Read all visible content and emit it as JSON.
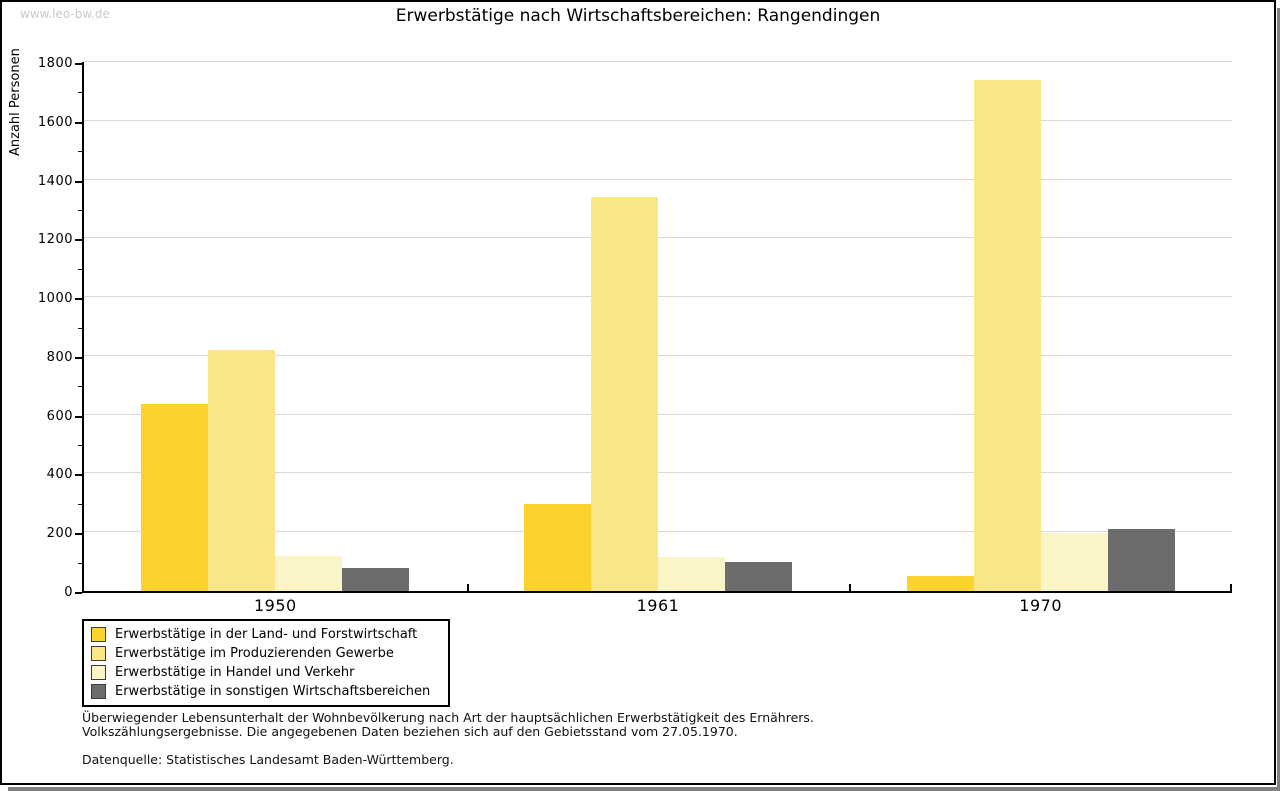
{
  "watermark": "www.leo-bw.de",
  "title": "Erwerbstätige nach Wirtschaftsbereichen: Rangendingen",
  "chart_data": {
    "type": "bar",
    "title": "Erwerbstätige nach Wirtschaftsbereichen: Rangendingen",
    "categories": [
      "1950",
      "1961",
      "1970"
    ],
    "series": [
      {
        "name": "Erwerbstätige in der Land- und Forstwirtschaft",
        "color": "#FBD32E",
        "values": [
          635,
          295,
          52
        ]
      },
      {
        "name": "Erwerbstätige im Produzierenden Gewerbe",
        "color": "#FAE687",
        "values": [
          820,
          1340,
          1740
        ]
      },
      {
        "name": "Erwerbstätige in Handel und Verkehr",
        "color": "#FBF4C7",
        "values": [
          118,
          115,
          197
        ]
      },
      {
        "name": "Erwerbstätige in sonstigen Wirtschaftsbereichen",
        "color": "#6C6C6C",
        "values": [
          80,
          100,
          212
        ]
      }
    ],
    "xlabel": "",
    "ylabel": "Anzahl Personen",
    "ylim": [
      0,
      1800
    ],
    "ytick_step": 200,
    "ytick_minor_step": 100,
    "grid": true,
    "gridline_color": "#d9d9d9",
    "legend_position": "bottom-left"
  },
  "footer": {
    "line1": "Überwiegender Lebensunterhalt der Wohnbevölkerung nach Art der hauptsächlichen Erwerbstätigkeit des Ernährers.",
    "line2": "Volkszählungsergebnisse. Die angegebenen Daten beziehen sich auf den Gebietsstand vom 27.05.1970.",
    "source": "Datenquelle: Statistisches Landesamt Baden-Württemberg."
  }
}
